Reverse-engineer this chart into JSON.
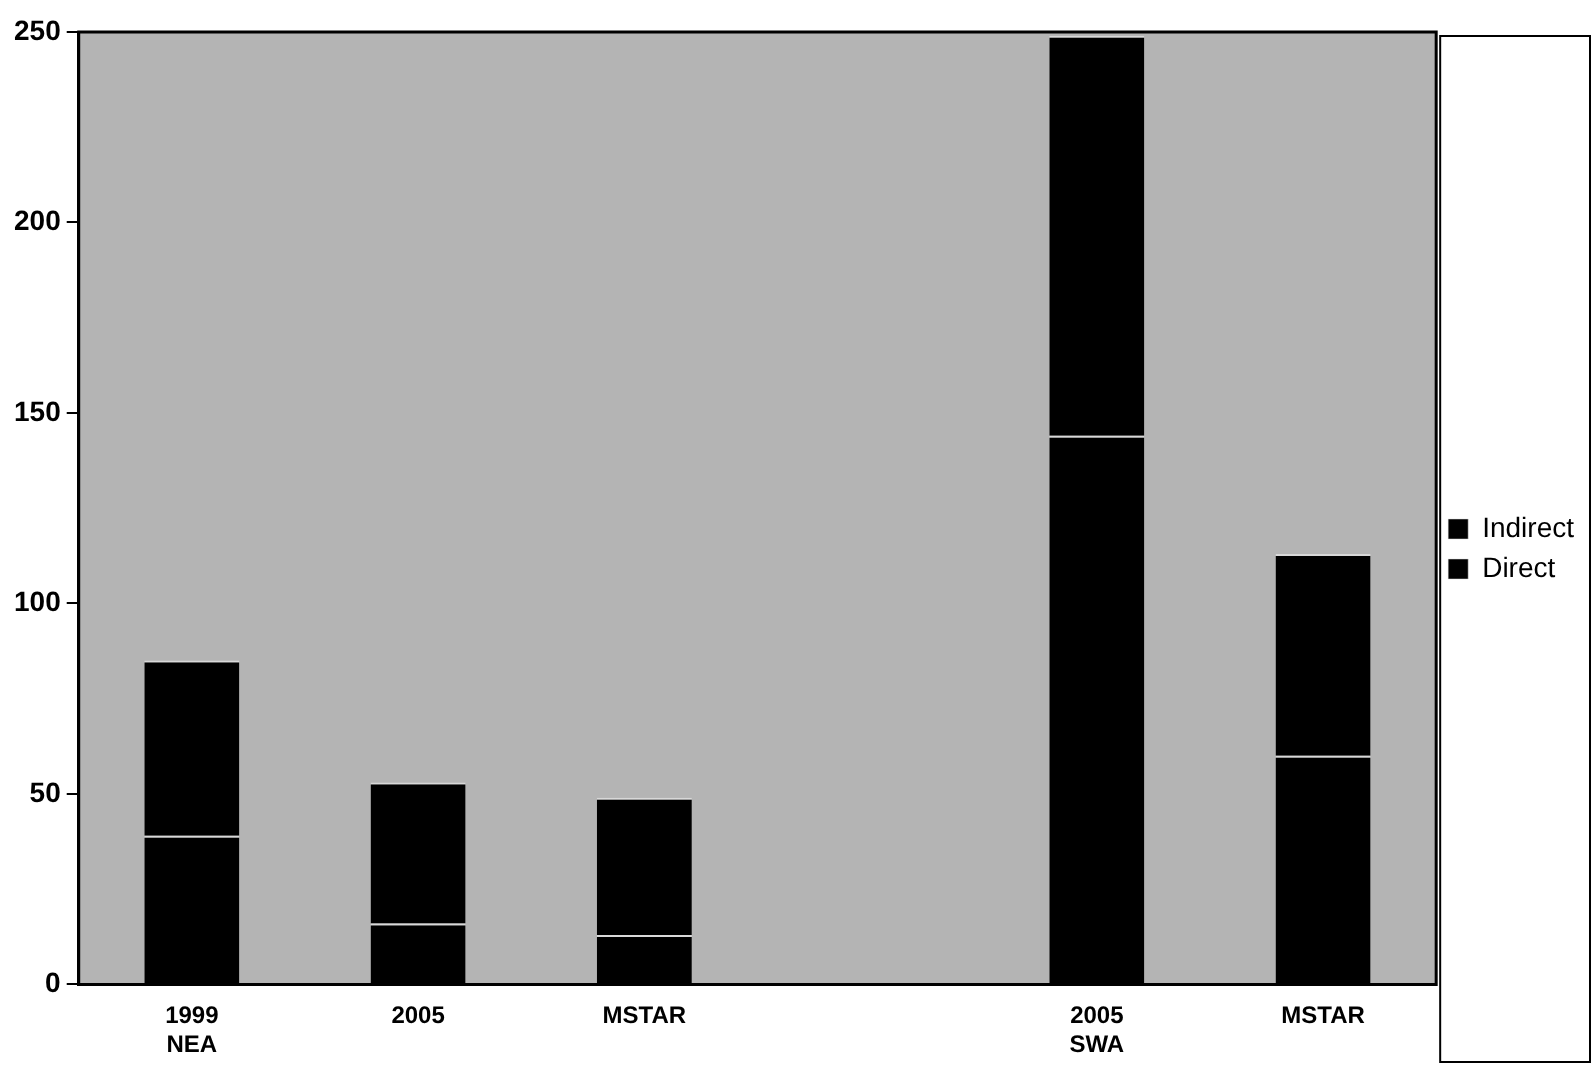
{
  "chart_data": {
    "type": "bar",
    "stacked": true,
    "categories": [
      "1999\nNEA",
      "2005",
      "MSTAR",
      null,
      "2005\nSWA",
      "MSTAR"
    ],
    "series": [
      {
        "name": "Direct",
        "color": "#000000",
        "values": [
          39,
          16,
          13,
          null,
          144,
          60
        ]
      },
      {
        "name": "Indirect",
        "color": "#000000",
        "values": [
          46,
          37,
          36,
          null,
          105,
          53
        ]
      }
    ],
    "ylim": [
      0,
      250
    ],
    "yticks": [
      0,
      50,
      100,
      150,
      200,
      250
    ],
    "grid": false,
    "legend": "right"
  }
}
